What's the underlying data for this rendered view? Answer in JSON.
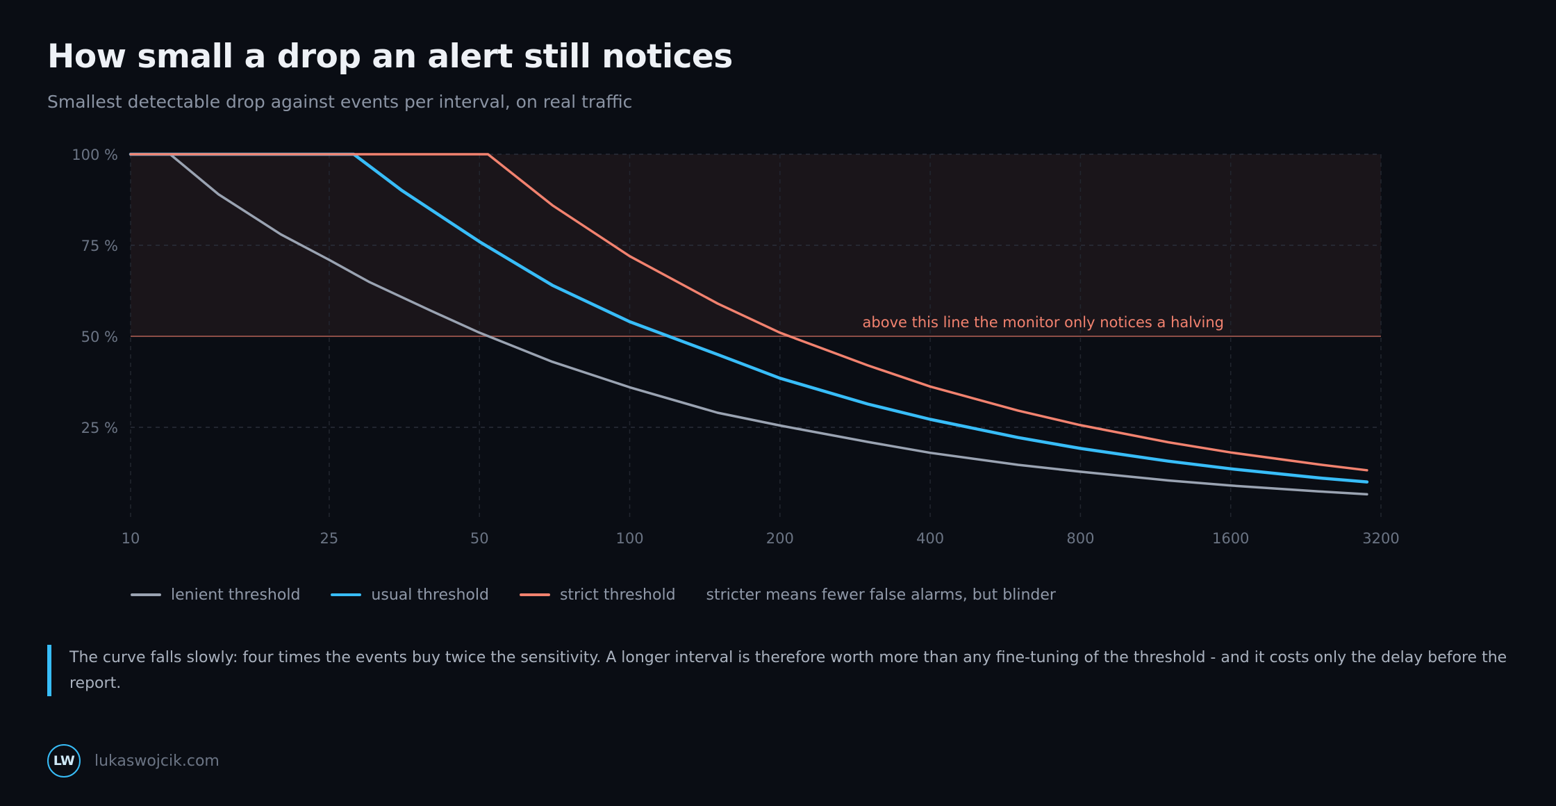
{
  "page": {
    "title": "How small a drop an alert still notices",
    "subtitle": "Smallest detectable drop against events per interval, on real traffic"
  },
  "legend": {
    "items": [
      {
        "label": "lenient threshold",
        "color": "#9aa3b2"
      },
      {
        "label": "usual threshold",
        "color": "#38bdf8"
      },
      {
        "label": "strict threshold",
        "color": "#f2826f"
      }
    ],
    "note": "stricter means fewer false alarms, but blinder"
  },
  "callout": {
    "text": "The curve falls slowly: four times the events buy twice the sensitivity. A longer interval is therefore worth more than any fine-tuning of the threshold - and it costs only the delay before the report."
  },
  "footer": {
    "logo_text": "LW",
    "site": "lukaswojcik.com",
    "accent": "#38bdf8"
  },
  "chart_data": {
    "type": "line",
    "x_scale": "log",
    "xlim": [
      10,
      3200
    ],
    "ylim": [
      0,
      100
    ],
    "x_ticks": [
      10,
      25,
      50,
      100,
      200,
      400,
      800,
      1600,
      3200
    ],
    "x_tick_labels": [
      "10",
      "25",
      "50",
      "100",
      "200",
      "400",
      "800",
      "1600",
      "3200"
    ],
    "y_ticks": [
      25,
      50,
      75,
      100
    ],
    "y_tick_labels": [
      "25 %",
      "50 %",
      "75 %",
      "100 %"
    ],
    "grid": true,
    "reference_line": {
      "y": 50,
      "label": "above this line the monitor only notices a halving",
      "color": "#f2826f",
      "shaded_above": true
    },
    "series": [
      {
        "name": "lenient threshold",
        "color": "#9aa3b2",
        "x": [
          10,
          12,
          15,
          20,
          25,
          30,
          40,
          50,
          70,
          100,
          150,
          200,
          300,
          400,
          600,
          800,
          1200,
          1600,
          2400,
          3000
        ],
        "y": [
          100,
          100,
          89,
          78,
          71,
          65,
          57,
          51,
          43,
          36,
          29,
          25.5,
          21,
          18,
          14.7,
          12.8,
          10.4,
          9.0,
          7.4,
          6.6
        ]
      },
      {
        "name": "usual threshold",
        "color": "#38bdf8",
        "x": [
          10,
          25,
          28,
          35,
          50,
          70,
          100,
          150,
          200,
          300,
          400,
          600,
          800,
          1200,
          1600,
          2400,
          3000
        ],
        "y": [
          100,
          100,
          100,
          90,
          76,
          64,
          54,
          45,
          38.5,
          31.4,
          27.2,
          22.2,
          19.2,
          15.7,
          13.6,
          11.1,
          10
        ]
      },
      {
        "name": "strict threshold",
        "color": "#f2826f",
        "x": [
          10,
          40,
          50,
          52,
          70,
          100,
          150,
          200,
          300,
          400,
          600,
          800,
          1200,
          1600,
          2400,
          3000
        ],
        "y": [
          100,
          100,
          100,
          100,
          86,
          72,
          59,
          51,
          42,
          36.2,
          29.6,
          25.6,
          20.9,
          18.1,
          14.8,
          13.2
        ]
      }
    ]
  }
}
